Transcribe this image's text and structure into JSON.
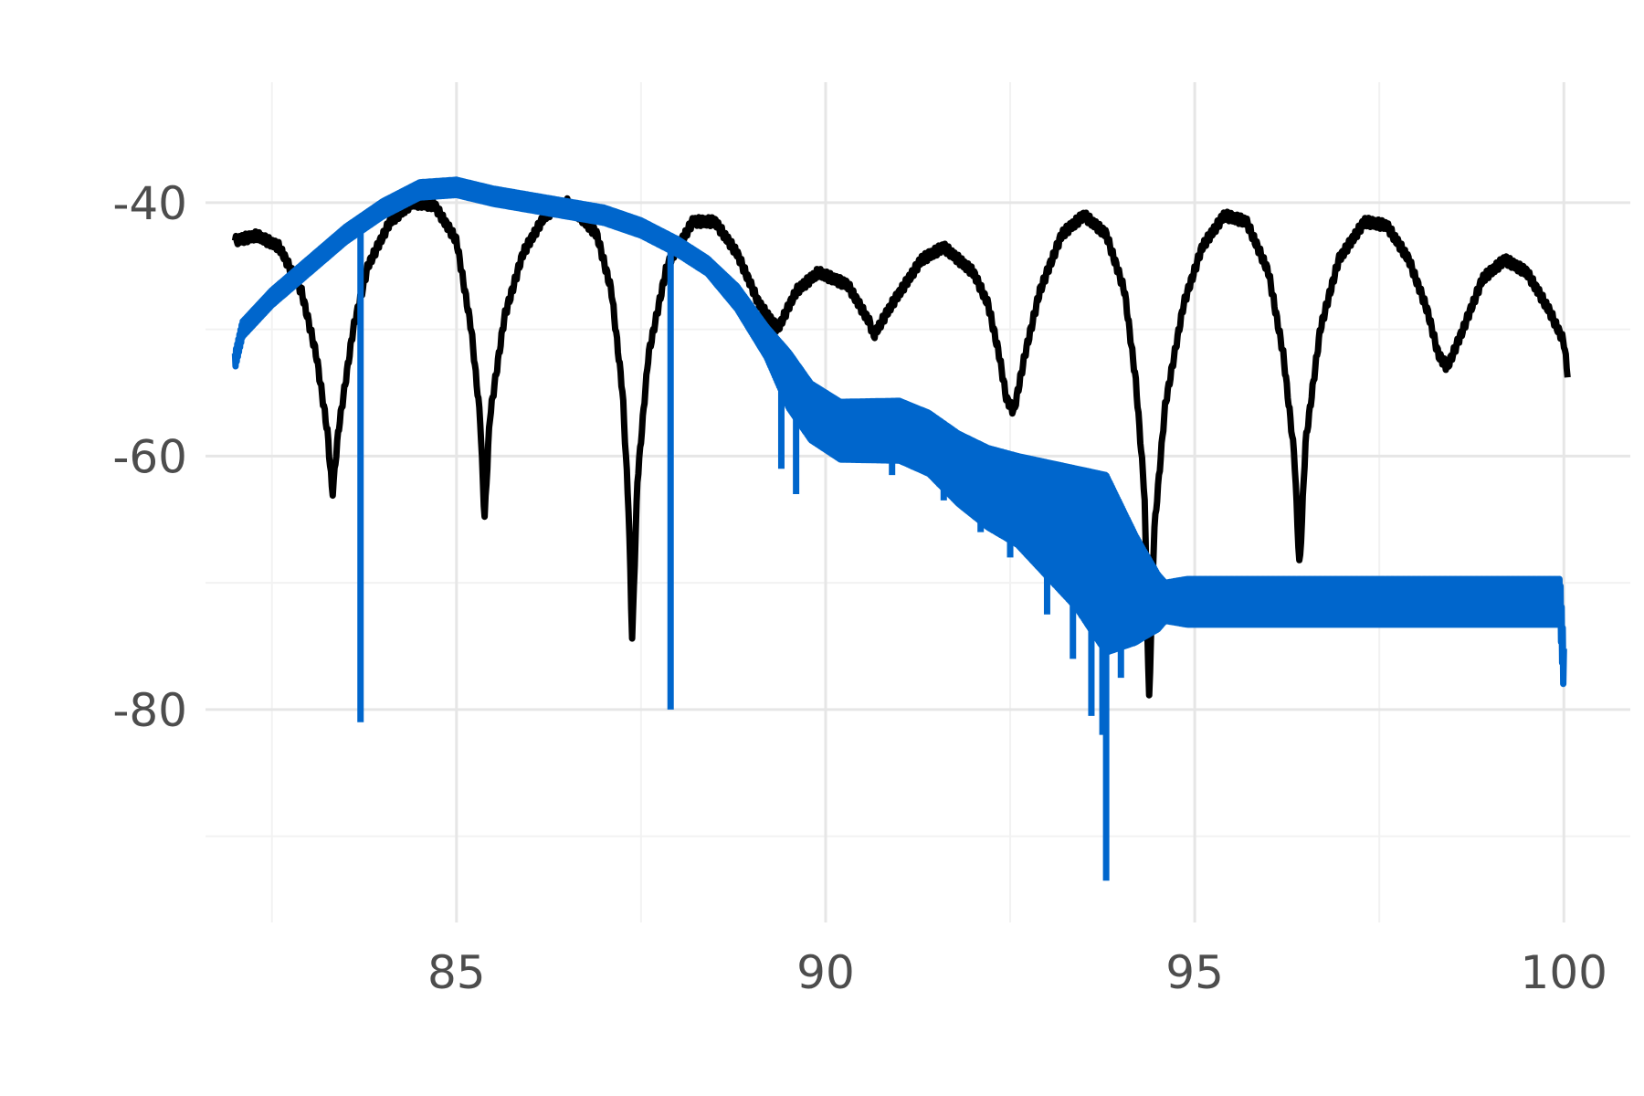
{
  "chart_data": {
    "type": "line",
    "title": "",
    "xlabel": "",
    "ylabel": "",
    "xlim": [
      81.6,
      100.9
    ],
    "ylim": [
      -96.8,
      -30.5
    ],
    "x_major_ticks": [
      85,
      90,
      95,
      100
    ],
    "x_major_tick_labels": [
      "85",
      "90",
      "95",
      "100"
    ],
    "x_minor_ticks": [
      82.5,
      87.5,
      92.5,
      97.5
    ],
    "y_major_ticks": [
      -40,
      -60,
      -80
    ],
    "y_major_tick_labels": [
      "-40",
      "-60",
      "-80"
    ],
    "y_minor_ticks": [
      -50,
      -70,
      -90
    ],
    "grid": true,
    "legend": "none",
    "series": [
      {
        "color": "#000000",
        "anchors": [
          [
            82.0,
            -43.0
          ],
          [
            82.3,
            -42.6
          ],
          [
            82.6,
            -43.5
          ],
          [
            82.9,
            -47.0
          ],
          [
            83.1,
            -52.0
          ],
          [
            83.25,
            -58.0
          ],
          [
            83.32,
            -63.0
          ],
          [
            83.4,
            -58.0
          ],
          [
            83.6,
            -50.0
          ],
          [
            83.8,
            -45.0
          ],
          [
            84.1,
            -41.5
          ],
          [
            84.4,
            -40.0
          ],
          [
            84.7,
            -40.2
          ],
          [
            85.0,
            -43.0
          ],
          [
            85.2,
            -50.0
          ],
          [
            85.32,
            -57.0
          ],
          [
            85.38,
            -65.0
          ],
          [
            85.45,
            -57.0
          ],
          [
            85.65,
            -49.0
          ],
          [
            85.9,
            -44.0
          ],
          [
            86.2,
            -41.0
          ],
          [
            86.5,
            -40.0
          ],
          [
            86.9,
            -42.5
          ],
          [
            87.1,
            -47.0
          ],
          [
            87.25,
            -55.0
          ],
          [
            87.33,
            -64.0
          ],
          [
            87.38,
            -74.5
          ],
          [
            87.45,
            -62.0
          ],
          [
            87.6,
            -52.0
          ],
          [
            87.85,
            -45.0
          ],
          [
            88.2,
            -41.5
          ],
          [
            88.5,
            -41.5
          ],
          [
            88.8,
            -44.0
          ],
          [
            89.1,
            -48.0
          ],
          [
            89.35,
            -50.0
          ],
          [
            89.6,
            -47.0
          ],
          [
            89.9,
            -45.5
          ],
          [
            90.3,
            -46.5
          ],
          [
            90.6,
            -49.5
          ],
          [
            90.65,
            -50.5
          ],
          [
            90.9,
            -48.0
          ],
          [
            91.3,
            -44.5
          ],
          [
            91.6,
            -43.5
          ],
          [
            92.0,
            -45.5
          ],
          [
            92.2,
            -48.0
          ],
          [
            92.35,
            -52.0
          ],
          [
            92.45,
            -55.5
          ],
          [
            92.55,
            -56.5
          ],
          [
            92.7,
            -52.0
          ],
          [
            92.9,
            -47.0
          ],
          [
            93.2,
            -42.5
          ],
          [
            93.5,
            -41.0
          ],
          [
            93.8,
            -42.5
          ],
          [
            94.05,
            -47.0
          ],
          [
            94.2,
            -54.0
          ],
          [
            94.32,
            -63.0
          ],
          [
            94.38,
            -79.5
          ],
          [
            94.45,
            -66.0
          ],
          [
            94.6,
            -56.0
          ],
          [
            94.85,
            -48.0
          ],
          [
            95.1,
            -43.5
          ],
          [
            95.4,
            -41.0
          ],
          [
            95.7,
            -41.5
          ],
          [
            96.0,
            -45.5
          ],
          [
            96.2,
            -52.0
          ],
          [
            96.35,
            -60.0
          ],
          [
            96.42,
            -69.0
          ],
          [
            96.5,
            -59.0
          ],
          [
            96.7,
            -50.0
          ],
          [
            96.95,
            -44.5
          ],
          [
            97.3,
            -41.5
          ],
          [
            97.6,
            -41.8
          ],
          [
            97.9,
            -44.5
          ],
          [
            98.15,
            -48.5
          ],
          [
            98.3,
            -52.0
          ],
          [
            98.42,
            -53.0
          ],
          [
            98.6,
            -50.5
          ],
          [
            98.9,
            -46.0
          ],
          [
            99.2,
            -44.5
          ],
          [
            99.5,
            -45.5
          ],
          [
            99.8,
            -48.5
          ],
          [
            100.0,
            -51.0
          ],
          [
            100.05,
            -53.5
          ]
        ],
        "ripple": 0.35
      },
      {
        "color": "#0066cc",
        "anchors": [
          [
            82.0,
            -52.5
          ],
          [
            82.1,
            -50.0
          ],
          [
            82.5,
            -47.5
          ],
          [
            83.0,
            -45.0
          ],
          [
            83.5,
            -42.5
          ],
          [
            84.0,
            -40.5
          ],
          [
            84.5,
            -39.0
          ],
          [
            85.0,
            -38.8
          ],
          [
            85.5,
            -39.5
          ],
          [
            86.0,
            -40.0
          ],
          [
            86.5,
            -40.5
          ],
          [
            87.0,
            -41.0
          ],
          [
            87.5,
            -42.0
          ],
          [
            88.0,
            -43.5
          ],
          [
            88.4,
            -45.0
          ],
          [
            88.8,
            -47.5
          ],
          [
            89.2,
            -51.0
          ],
          [
            89.5,
            -54.0
          ],
          [
            89.8,
            -56.5
          ],
          [
            90.2,
            -58.0
          ],
          [
            90.6,
            -58.0
          ],
          [
            91.0,
            -58.0
          ],
          [
            91.4,
            -59.0
          ],
          [
            91.8,
            -61.0
          ],
          [
            92.2,
            -62.5
          ],
          [
            92.6,
            -63.5
          ],
          [
            93.0,
            -65.0
          ],
          [
            93.4,
            -66.5
          ],
          [
            93.8,
            -68.5
          ],
          [
            94.2,
            -70.5
          ],
          [
            94.5,
            -71.5
          ],
          [
            95.0,
            -71.5
          ],
          [
            96.0,
            -71.5
          ],
          [
            97.0,
            -71.5
          ],
          [
            98.0,
            -71.5
          ],
          [
            99.0,
            -71.5
          ],
          [
            99.95,
            -71.5
          ],
          [
            100.0,
            -77.0
          ]
        ],
        "osc": [
          [
            82.0,
            0.6
          ],
          [
            88.4,
            0.6
          ],
          [
            89.2,
            1.2
          ],
          [
            89.5,
            2.2
          ],
          [
            91.4,
            2.4
          ],
          [
            92.6,
            3.5
          ],
          [
            93.4,
            5.5
          ],
          [
            93.8,
            7.0
          ],
          [
            94.3,
            3.5
          ],
          [
            94.6,
            1.5
          ],
          [
            94.9,
            1.8
          ],
          [
            100.0,
            1.8
          ]
        ],
        "spikes": [
          [
            83.7,
            -81.0
          ],
          [
            87.9,
            -80.0
          ],
          [
            89.4,
            -61.0
          ],
          [
            89.6,
            -63.0
          ],
          [
            90.9,
            -61.5
          ],
          [
            91.6,
            -63.5
          ],
          [
            92.1,
            -66.0
          ],
          [
            92.5,
            -68.0
          ],
          [
            93.0,
            -72.5
          ],
          [
            93.35,
            -76.0
          ],
          [
            93.6,
            -80.5
          ],
          [
            93.75,
            -82.0
          ],
          [
            93.8,
            -93.5
          ],
          [
            94.0,
            -77.5
          ],
          [
            94.15,
            -75.0
          ],
          [
            94.3,
            -73.0
          ]
        ]
      }
    ]
  }
}
